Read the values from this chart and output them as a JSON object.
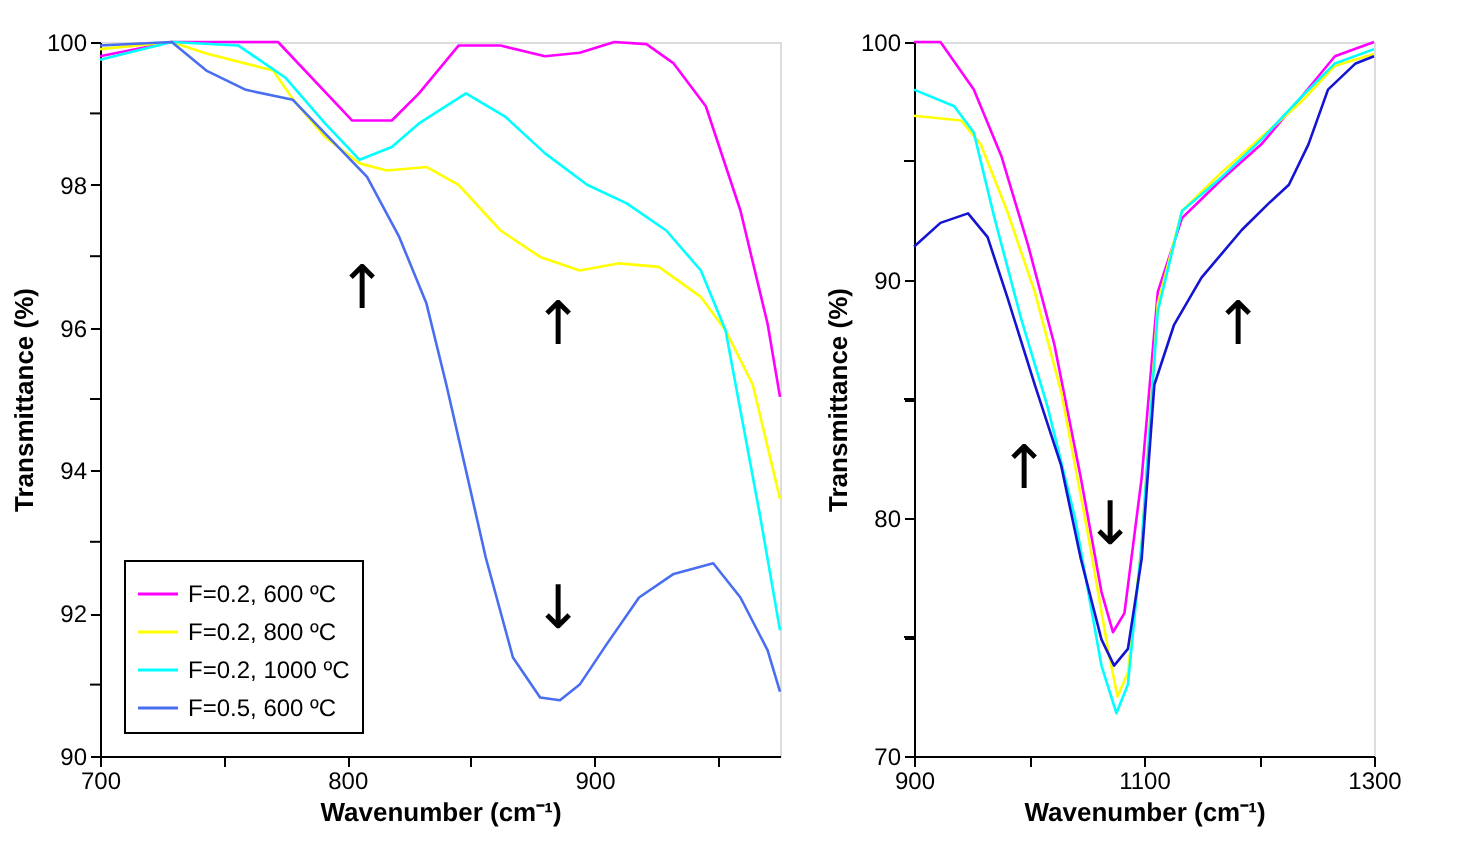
{
  "chart_data": [
    {
      "type": "line",
      "xlabel": "Wavenumber (cm⁻¹)",
      "ylabel": "Transmittance (%)",
      "xlim": [
        700,
        975
      ],
      "ylim": [
        90,
        100
      ],
      "xticks": [
        700,
        {
          "value": 750,
          "label": null
        },
        800,
        {
          "value": 850,
          "label": null
        },
        900,
        {
          "value": 950,
          "label": null
        }
      ],
      "yticks": [
        90,
        {
          "value": 91,
          "label": null
        },
        92,
        {
          "value": 93,
          "label": null
        },
        94,
        {
          "value": 95,
          "label": null
        },
        96,
        {
          "value": 97,
          "label": null
        },
        98,
        {
          "value": 99,
          "label": null
        },
        100
      ],
      "grid": false,
      "legend": "bottom left",
      "line_style": "solid",
      "marker": "none",
      "series": [
        {
          "name": "F=0.2, 600 ºC",
          "color": "#ff00ff",
          "x": [
            700,
            729,
            772,
            802,
            818,
            829,
            845,
            862,
            880,
            894,
            908,
            921,
            932,
            945,
            959,
            970,
            975
          ],
          "values": [
            99.8,
            100,
            100,
            98.9,
            98.9,
            99.28,
            99.95,
            99.95,
            99.8,
            99.85,
            100,
            99.97,
            99.7,
            99.1,
            97.64,
            96.05,
            95.03
          ]
        },
        {
          "name": "F=0.2, 800 ºC",
          "color": "#ffff00",
          "x": [
            700,
            729,
            743,
            770,
            778,
            791,
            805,
            816,
            832,
            845,
            862,
            878,
            894,
            910,
            926,
            943,
            953,
            964,
            975
          ],
          "values": [
            99.9,
            100,
            99.84,
            99.6,
            99.2,
            98.67,
            98.3,
            98.2,
            98.25,
            98.0,
            97.36,
            96.99,
            96.8,
            96.9,
            96.85,
            96.43,
            95.96,
            95.2,
            93.6
          ]
        },
        {
          "name": "F=0.2, 1000 ºC",
          "color": "#00ffff",
          "x": [
            700,
            729,
            756,
            775,
            791,
            805,
            818,
            829,
            848,
            864,
            880,
            897,
            913,
            929,
            943,
            953,
            959,
            967,
            975
          ],
          "values": [
            99.75,
            100,
            99.95,
            99.5,
            98.86,
            98.35,
            98.53,
            98.86,
            99.28,
            98.95,
            98.44,
            98.0,
            97.74,
            97.36,
            96.8,
            95.96,
            94.84,
            93.35,
            91.76
          ]
        },
        {
          "name": "F=0.5, 600 ºC",
          "color": "#4a6ef0",
          "x": [
            700,
            729,
            743,
            759,
            778,
            791,
            808,
            821,
            832,
            840,
            848,
            856,
            867,
            878,
            886,
            894,
            905,
            918,
            932,
            948,
            959,
            970,
            975
          ],
          "values": [
            99.95,
            100,
            99.6,
            99.33,
            99.19,
            98.72,
            98.11,
            97.27,
            96.34,
            95.21,
            94.0,
            92.78,
            91.38,
            90.82,
            90.78,
            91.0,
            91.57,
            92.22,
            92.55,
            92.7,
            92.22,
            91.48,
            90.9
          ]
        }
      ],
      "annotations": [
        "↑",
        "↑",
        "↓"
      ]
    },
    {
      "type": "line",
      "xlabel": "Wavenumber (cm⁻¹)",
      "ylabel": "Transmittance (%)",
      "xlim": [
        900,
        1300
      ],
      "ylim": [
        70,
        100
      ],
      "xticks": [
        900,
        {
          "value": 1000,
          "label": null
        },
        1100,
        {
          "value": 1200,
          "label": null
        },
        1300
      ],
      "yticks": [
        70,
        {
          "value": 75,
          "label": null
        },
        80,
        {
          "value": 85,
          "label": null
        },
        90,
        {
          "value": 95,
          "label": null
        },
        100
      ],
      "grid": false,
      "line_style": "solid",
      "marker": "none",
      "series": [
        {
          "color": "#ff00ff",
          "x": [
            900,
            923,
            952,
            976,
            999,
            1022,
            1045,
            1063,
            1073,
            1083,
            1098,
            1112,
            1133,
            1167,
            1202,
            1237,
            1266,
            1300
          ],
          "values": [
            100,
            100,
            98.0,
            95.2,
            91.5,
            87.3,
            81.7,
            76.9,
            75.2,
            76.0,
            81.7,
            89.5,
            92.6,
            94.2,
            95.7,
            97.7,
            99.4,
            100
          ]
        },
        {
          "color": "#ffff00",
          "x": [
            900,
            941,
            958,
            981,
            1005,
            1028,
            1051,
            1069,
            1077,
            1086,
            1098,
            1112,
            1133,
            1167,
            1202,
            1237,
            1266,
            1300
          ],
          "values": [
            96.9,
            96.7,
            95.7,
            92.9,
            89.5,
            85.3,
            79.4,
            74.4,
            72.5,
            73.5,
            78.9,
            89.0,
            92.9,
            94.5,
            96.0,
            97.5,
            99.0,
            99.5
          ]
        },
        {
          "color": "#00ffff",
          "x": [
            900,
            935,
            952,
            970,
            993,
            1016,
            1040,
            1063,
            1076,
            1086,
            1098,
            1112,
            1133,
            1167,
            1202,
            1237,
            1266,
            1300
          ],
          "values": [
            98.0,
            97.3,
            96.2,
            92.6,
            88.4,
            84.7,
            80.0,
            73.8,
            71.8,
            73.0,
            78.9,
            88.7,
            92.9,
            94.3,
            95.9,
            97.7,
            99.1,
            99.7
          ]
        },
        {
          "color": "#1414d2",
          "x": [
            900,
            923,
            947,
            964,
            981,
            1005,
            1028,
            1045,
            1063,
            1074,
            1086,
            1098,
            1109,
            1126,
            1150,
            1185,
            1208,
            1226,
            1243,
            1260,
            1284,
            1300
          ],
          "values": [
            91.4,
            92.4,
            92.8,
            91.8,
            89.3,
            85.6,
            82.2,
            78.3,
            74.9,
            73.8,
            74.5,
            78.3,
            85.6,
            88.1,
            90.1,
            92.1,
            93.2,
            94.0,
            95.7,
            98.0,
            99.1,
            99.4
          ]
        }
      ],
      "annotations": [
        "↑",
        "↓",
        "↑"
      ]
    }
  ]
}
